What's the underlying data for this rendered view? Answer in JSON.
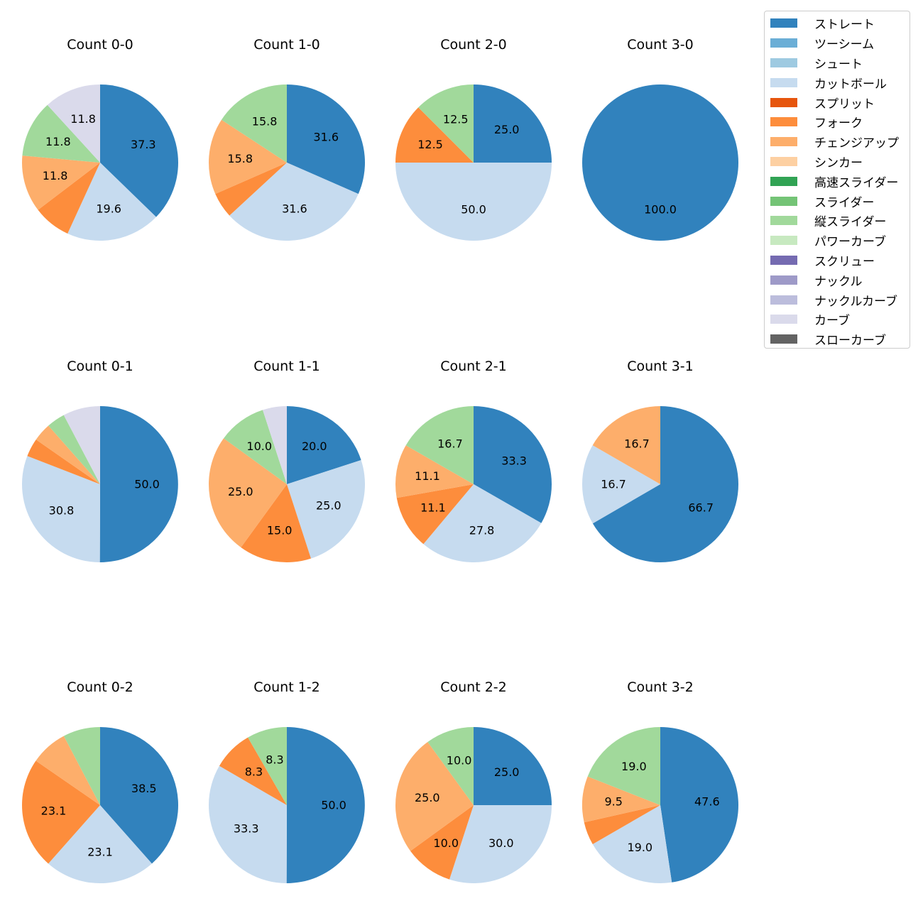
{
  "legend": {
    "items": [
      {
        "label": "ストレート",
        "color": "#3182bd"
      },
      {
        "label": "ツーシーム",
        "color": "#6baed6"
      },
      {
        "label": "シュート",
        "color": "#9ecae1"
      },
      {
        "label": "カットボール",
        "color": "#c6dbef"
      },
      {
        "label": "スプリット",
        "color": "#e6550d"
      },
      {
        "label": "フォーク",
        "color": "#fd8d3c"
      },
      {
        "label": "チェンジアップ",
        "color": "#fdae6b"
      },
      {
        "label": "シンカー",
        "color": "#fdd0a2"
      },
      {
        "label": "高速スライダー",
        "color": "#31a354"
      },
      {
        "label": "スライダー",
        "color": "#74c476"
      },
      {
        "label": "縦スライダー",
        "color": "#a1d99b"
      },
      {
        "label": "パワーカーブ",
        "color": "#c7e9c0"
      },
      {
        "label": "スクリュー",
        "color": "#756bb1"
      },
      {
        "label": "ナックル",
        "color": "#9e9ac8"
      },
      {
        "label": "ナックルカーブ",
        "color": "#bcbddc"
      },
      {
        "label": "カーブ",
        "color": "#dadaeb"
      },
      {
        "label": "スローカーブ",
        "color": "#636363"
      }
    ]
  },
  "chart_data": [
    {
      "type": "pie",
      "title": "Count 0-0",
      "slices": [
        {
          "pitch": "ストレート",
          "value": 37.3,
          "label": "37.3"
        },
        {
          "pitch": "カットボール",
          "value": 19.6,
          "label": "19.6"
        },
        {
          "pitch": "フォーク",
          "value": 7.8,
          "label": ""
        },
        {
          "pitch": "チェンジアップ",
          "value": 11.8,
          "label": "11.8"
        },
        {
          "pitch": "縦スライダー",
          "value": 11.8,
          "label": "11.8"
        },
        {
          "pitch": "カーブ",
          "value": 11.8,
          "label": "11.8"
        }
      ]
    },
    {
      "type": "pie",
      "title": "Count 1-0",
      "slices": [
        {
          "pitch": "ストレート",
          "value": 31.6,
          "label": "31.6"
        },
        {
          "pitch": "カットボール",
          "value": 31.6,
          "label": "31.6"
        },
        {
          "pitch": "フォーク",
          "value": 5.3,
          "label": ""
        },
        {
          "pitch": "チェンジアップ",
          "value": 15.8,
          "label": "15.8"
        },
        {
          "pitch": "縦スライダー",
          "value": 15.8,
          "label": "15.8"
        }
      ]
    },
    {
      "type": "pie",
      "title": "Count 2-0",
      "slices": [
        {
          "pitch": "ストレート",
          "value": 25.0,
          "label": "25.0"
        },
        {
          "pitch": "カットボール",
          "value": 50.0,
          "label": "50.0"
        },
        {
          "pitch": "フォーク",
          "value": 12.5,
          "label": "12.5"
        },
        {
          "pitch": "縦スライダー",
          "value": 12.5,
          "label": "12.5"
        }
      ]
    },
    {
      "type": "pie",
      "title": "Count 3-0",
      "slices": [
        {
          "pitch": "ストレート",
          "value": 100.0,
          "label": "100.0"
        }
      ]
    },
    {
      "type": "pie",
      "title": "Count 0-1",
      "slices": [
        {
          "pitch": "ストレート",
          "value": 50.0,
          "label": "50.0"
        },
        {
          "pitch": "カットボール",
          "value": 30.8,
          "label": "30.8"
        },
        {
          "pitch": "フォーク",
          "value": 3.8,
          "label": ""
        },
        {
          "pitch": "チェンジアップ",
          "value": 3.8,
          "label": ""
        },
        {
          "pitch": "縦スライダー",
          "value": 3.8,
          "label": ""
        },
        {
          "pitch": "カーブ",
          "value": 7.7,
          "label": ""
        }
      ]
    },
    {
      "type": "pie",
      "title": "Count 1-1",
      "slices": [
        {
          "pitch": "ストレート",
          "value": 20.0,
          "label": "20.0"
        },
        {
          "pitch": "カットボール",
          "value": 25.0,
          "label": "25.0"
        },
        {
          "pitch": "フォーク",
          "value": 15.0,
          "label": "15.0"
        },
        {
          "pitch": "チェンジアップ",
          "value": 25.0,
          "label": "25.0"
        },
        {
          "pitch": "縦スライダー",
          "value": 10.0,
          "label": "10.0"
        },
        {
          "pitch": "カーブ",
          "value": 5.0,
          "label": ""
        }
      ]
    },
    {
      "type": "pie",
      "title": "Count 2-1",
      "slices": [
        {
          "pitch": "ストレート",
          "value": 33.3,
          "label": "33.3"
        },
        {
          "pitch": "カットボール",
          "value": 27.8,
          "label": "27.8"
        },
        {
          "pitch": "フォーク",
          "value": 11.1,
          "label": "11.1"
        },
        {
          "pitch": "チェンジアップ",
          "value": 11.1,
          "label": "11.1"
        },
        {
          "pitch": "縦スライダー",
          "value": 16.7,
          "label": "16.7"
        }
      ]
    },
    {
      "type": "pie",
      "title": "Count 3-1",
      "slices": [
        {
          "pitch": "ストレート",
          "value": 66.7,
          "label": "66.7"
        },
        {
          "pitch": "カットボール",
          "value": 16.7,
          "label": "16.7"
        },
        {
          "pitch": "チェンジアップ",
          "value": 16.7,
          "label": "16.7"
        }
      ]
    },
    {
      "type": "pie",
      "title": "Count 0-2",
      "slices": [
        {
          "pitch": "ストレート",
          "value": 38.5,
          "label": "38.5"
        },
        {
          "pitch": "カットボール",
          "value": 23.1,
          "label": "23.1"
        },
        {
          "pitch": "フォーク",
          "value": 23.1,
          "label": "23.1"
        },
        {
          "pitch": "チェンジアップ",
          "value": 7.7,
          "label": ""
        },
        {
          "pitch": "縦スライダー",
          "value": 7.7,
          "label": ""
        }
      ]
    },
    {
      "type": "pie",
      "title": "Count 1-2",
      "slices": [
        {
          "pitch": "ストレート",
          "value": 50.0,
          "label": "50.0"
        },
        {
          "pitch": "カットボール",
          "value": 33.3,
          "label": "33.3"
        },
        {
          "pitch": "フォーク",
          "value": 8.3,
          "label": "8.3"
        },
        {
          "pitch": "縦スライダー",
          "value": 8.3,
          "label": "8.3"
        }
      ]
    },
    {
      "type": "pie",
      "title": "Count 2-2",
      "slices": [
        {
          "pitch": "ストレート",
          "value": 25.0,
          "label": "25.0"
        },
        {
          "pitch": "カットボール",
          "value": 30.0,
          "label": "30.0"
        },
        {
          "pitch": "フォーク",
          "value": 10.0,
          "label": "10.0"
        },
        {
          "pitch": "チェンジアップ",
          "value": 25.0,
          "label": "25.0"
        },
        {
          "pitch": "縦スライダー",
          "value": 10.0,
          "label": "10.0"
        }
      ]
    },
    {
      "type": "pie",
      "title": "Count 3-2",
      "slices": [
        {
          "pitch": "ストレート",
          "value": 47.6,
          "label": "47.6"
        },
        {
          "pitch": "カットボール",
          "value": 19.0,
          "label": "19.0"
        },
        {
          "pitch": "フォーク",
          "value": 4.8,
          "label": ""
        },
        {
          "pitch": "チェンジアップ",
          "value": 9.5,
          "label": "9.5"
        },
        {
          "pitch": "縦スライダー",
          "value": 19.0,
          "label": "19.0"
        }
      ]
    }
  ]
}
